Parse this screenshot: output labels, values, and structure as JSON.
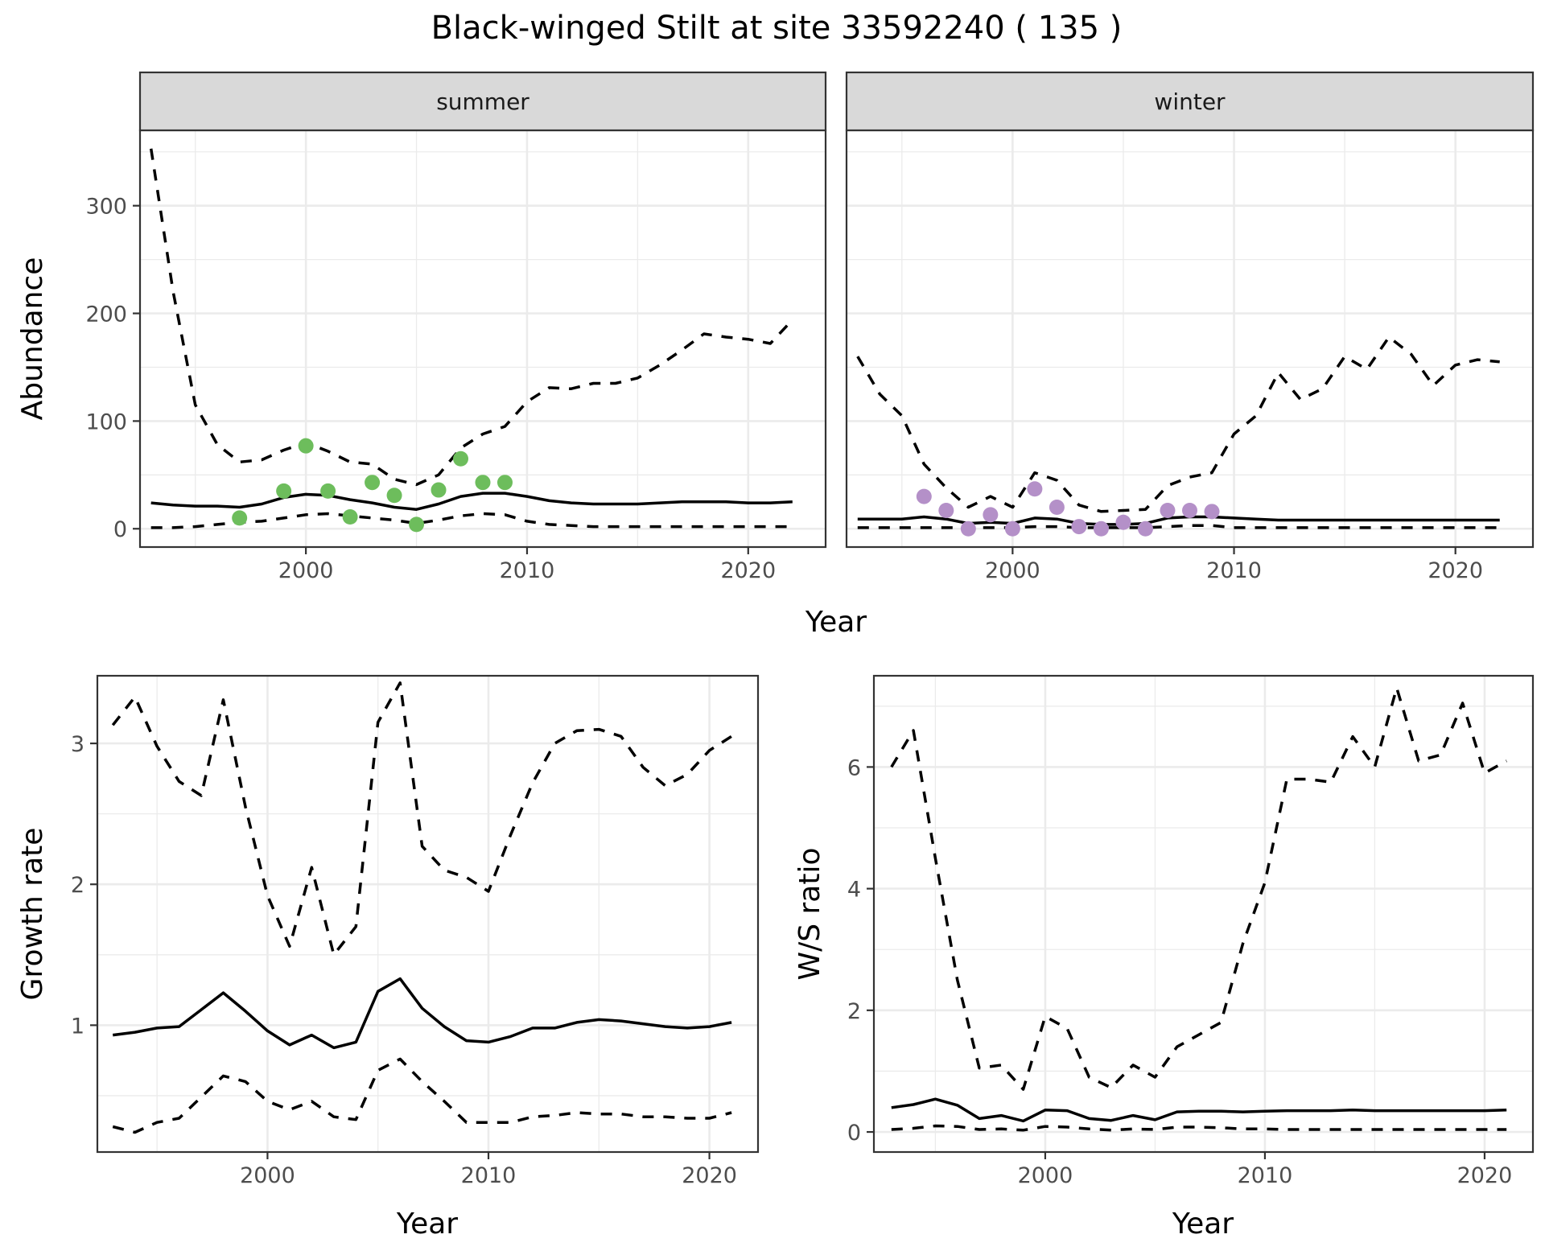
{
  "chart_data": {
    "title": "Black-winged Stilt at site 33592240 ( 135 )",
    "panels": [
      {
        "id": "summer",
        "type": "line",
        "strip": "summer",
        "xlabel": "Year",
        "ylabel": "Abundance",
        "xlim": [
          1992.5,
          2023.5
        ],
        "ylim": [
          -17,
          370
        ],
        "xticks": [
          2000,
          2010,
          2020
        ],
        "xminor": [
          1995,
          2005,
          2015
        ],
        "yticks": [
          0,
          100,
          200,
          300
        ],
        "yminor": [
          50,
          150,
          250,
          350
        ],
        "show_yticks": true,
        "point_color": "#6dbd5c",
        "x": [
          1993,
          1994,
          1995,
          1996,
          1997,
          1998,
          1999,
          2000,
          2001,
          2002,
          2003,
          2004,
          2005,
          2006,
          2007,
          2008,
          2009,
          2010,
          2011,
          2012,
          2013,
          2014,
          2015,
          2016,
          2017,
          2018,
          2019,
          2020,
          2021,
          2022
        ],
        "series": [
          {
            "name": "upper",
            "style": "dashed",
            "values": [
              353,
              220,
              115,
              78,
              62,
              64,
              73,
              80,
              72,
              62,
              60,
              46,
              41,
              50,
              75,
              88,
              95,
              118,
              131,
              130,
              135,
              135,
              140,
              152,
              166,
              181,
              178,
              176,
              172,
              194
            ]
          },
          {
            "name": "mean",
            "style": "solid",
            "values": [
              24,
              22,
              21,
              21,
              20,
              23,
              29,
              32,
              31,
              27,
              24,
              20,
              18,
              23,
              30,
              33,
              33,
              30,
              26,
              24,
              23,
              23,
              23,
              24,
              25,
              25,
              25,
              24,
              24,
              25
            ]
          },
          {
            "name": "lower",
            "style": "dashed",
            "values": [
              1,
              1,
              2,
              4,
              6,
              7,
              10,
              13,
              14,
              12,
              10,
              8,
              5,
              8,
              12,
              14,
              13,
              7,
              4,
              3,
              2,
              2,
              2,
              2,
              2,
              2,
              2,
              2,
              2,
              2
            ]
          }
        ],
        "points": [
          {
            "x": 1997,
            "y": 10
          },
          {
            "x": 1999,
            "y": 35
          },
          {
            "x": 2000,
            "y": 77
          },
          {
            "x": 2001,
            "y": 35
          },
          {
            "x": 2002,
            "y": 11
          },
          {
            "x": 2003,
            "y": 43
          },
          {
            "x": 2004,
            "y": 31
          },
          {
            "x": 2005,
            "y": 4
          },
          {
            "x": 2006,
            "y": 36
          },
          {
            "x": 2007,
            "y": 65
          },
          {
            "x": 2008,
            "y": 43
          },
          {
            "x": 2009,
            "y": 43
          }
        ]
      },
      {
        "id": "winter",
        "type": "line",
        "strip": "winter",
        "xlabel": "Year",
        "ylabel": "",
        "xlim": [
          1992.5,
          2023.5
        ],
        "ylim": [
          -17,
          370
        ],
        "xticks": [
          2000,
          2010,
          2020
        ],
        "xminor": [
          1995,
          2005,
          2015
        ],
        "yticks": [
          0,
          100,
          200,
          300
        ],
        "yminor": [
          50,
          150,
          250,
          350
        ],
        "show_yticks": false,
        "point_color": "#b490c8",
        "x": [
          1993,
          1994,
          1995,
          1996,
          1997,
          1998,
          1999,
          2000,
          2001,
          2002,
          2003,
          2004,
          2005,
          2006,
          2007,
          2008,
          2009,
          2010,
          2011,
          2012,
          2013,
          2014,
          2015,
          2016,
          2017,
          2018,
          2019,
          2020,
          2021,
          2022
        ],
        "series": [
          {
            "name": "upper",
            "style": "dashed",
            "values": [
              160,
              125,
              105,
              60,
              38,
              20,
              30,
              20,
              52,
              45,
              22,
              16,
              17,
              18,
              40,
              48,
              52,
              88,
              105,
              145,
              120,
              130,
              160,
              148,
              178,
              162,
              133,
              152,
              157,
              155
            ]
          },
          {
            "name": "mean",
            "style": "solid",
            "values": [
              9,
              9,
              9,
              11,
              9,
              5,
              6,
              5,
              10,
              9,
              5,
              4,
              4,
              5,
              10,
              11,
              11,
              10,
              9,
              8,
              8,
              8,
              8,
              8,
              8,
              8,
              8,
              8,
              8,
              8
            ]
          },
          {
            "name": "lower",
            "style": "dashed",
            "values": [
              1,
              1,
              1,
              1,
              1,
              1,
              1,
              1,
              2,
              2,
              1,
              1,
              1,
              1,
              2,
              3,
              3,
              1,
              1,
              1,
              1,
              1,
              1,
              1,
              1,
              1,
              1,
              1,
              1,
              1
            ]
          }
        ],
        "points": [
          {
            "x": 1996,
            "y": 30
          },
          {
            "x": 1997,
            "y": 17
          },
          {
            "x": 1998,
            "y": 0
          },
          {
            "x": 1999,
            "y": 13
          },
          {
            "x": 2000,
            "y": 0
          },
          {
            "x": 2001,
            "y": 37
          },
          {
            "x": 2002,
            "y": 20
          },
          {
            "x": 2003,
            "y": 2
          },
          {
            "x": 2004,
            "y": 0
          },
          {
            "x": 2005,
            "y": 6
          },
          {
            "x": 2006,
            "y": 0
          },
          {
            "x": 2007,
            "y": 17
          },
          {
            "x": 2008,
            "y": 17
          },
          {
            "x": 2009,
            "y": 16
          }
        ]
      },
      {
        "id": "growth",
        "type": "line",
        "strip": "",
        "xlabel": "Year",
        "ylabel": "Growth rate",
        "xlim": [
          1992.3,
          2022.2
        ],
        "ylim": [
          0.1,
          3.48
        ],
        "xticks": [
          2000,
          2010,
          2020
        ],
        "xminor": [
          1995,
          2005,
          2015
        ],
        "yticks": [
          1,
          2,
          3
        ],
        "yminor": [
          0.5,
          1.5,
          2.5
        ],
        "show_yticks": true,
        "x": [
          1993,
          1994,
          1995,
          1996,
          1997,
          1998,
          1999,
          2000,
          2001,
          2002,
          2003,
          2004,
          2005,
          2006,
          2007,
          2008,
          2009,
          2010,
          2011,
          2012,
          2013,
          2014,
          2015,
          2016,
          2017,
          2018,
          2019,
          2020,
          2021
        ],
        "series": [
          {
            "name": "upper",
            "style": "dashed",
            "values": [
              3.13,
              3.33,
              2.98,
              2.73,
              2.63,
              3.31,
              2.55,
              1.92,
              1.56,
              2.12,
              1.5,
              1.7,
              3.15,
              3.43,
              2.27,
              2.1,
              2.05,
              1.95,
              2.35,
              2.72,
              3.0,
              3.09,
              3.1,
              3.05,
              2.83,
              2.7,
              2.78,
              2.95,
              3.05
            ]
          },
          {
            "name": "mean",
            "style": "solid",
            "values": [
              0.93,
              0.95,
              0.98,
              0.99,
              1.11,
              1.23,
              1.1,
              0.96,
              0.86,
              0.93,
              0.84,
              0.88,
              1.24,
              1.33,
              1.12,
              0.99,
              0.89,
              0.88,
              0.92,
              0.98,
              0.98,
              1.02,
              1.04,
              1.03,
              1.01,
              0.99,
              0.98,
              0.99,
              1.02
            ]
          },
          {
            "name": "lower",
            "style": "dashed",
            "values": [
              0.28,
              0.24,
              0.31,
              0.34,
              0.49,
              0.64,
              0.6,
              0.46,
              0.4,
              0.46,
              0.35,
              0.33,
              0.68,
              0.76,
              0.6,
              0.46,
              0.31,
              0.31,
              0.31,
              0.35,
              0.36,
              0.38,
              0.37,
              0.37,
              0.35,
              0.35,
              0.34,
              0.34,
              0.38
            ]
          }
        ]
      },
      {
        "id": "ws-ratio",
        "type": "line",
        "strip": "",
        "xlabel": "Year",
        "ylabel": "W/S ratio",
        "xlim": [
          1992.2,
          2022.2
        ],
        "ylim": [
          -0.33,
          7.5
        ],
        "xticks": [
          2000,
          2010,
          2020
        ],
        "xminor": [
          1995,
          2005,
          2015
        ],
        "yticks": [
          0,
          2,
          4,
          6
        ],
        "yminor": [
          1,
          3,
          5,
          7
        ],
        "show_yticks": true,
        "x": [
          1993,
          1994,
          1995,
          1996,
          1997,
          1998,
          1999,
          2000,
          2001,
          2002,
          2003,
          2004,
          2005,
          2006,
          2007,
          2008,
          2009,
          2010,
          2011,
          2012,
          2013,
          2014,
          2015,
          2016,
          2017,
          2018,
          2019,
          2020,
          2021
        ],
        "series": [
          {
            "name": "upper",
            "style": "dashed",
            "values": [
              6.0,
              6.6,
              4.5,
              2.5,
              1.05,
              1.1,
              0.7,
              1.9,
              1.7,
              0.9,
              0.73,
              1.1,
              0.9,
              1.4,
              1.6,
              1.8,
              3.1,
              4.1,
              5.8,
              5.8,
              5.75,
              6.5,
              6.0,
              7.3,
              6.1,
              6.2,
              7.05,
              5.9,
              6.1
            ]
          },
          {
            "name": "mean",
            "style": "solid",
            "values": [
              0.4,
              0.45,
              0.54,
              0.44,
              0.22,
              0.27,
              0.18,
              0.36,
              0.35,
              0.22,
              0.19,
              0.27,
              0.2,
              0.33,
              0.34,
              0.34,
              0.33,
              0.34,
              0.35,
              0.35,
              0.35,
              0.36,
              0.35,
              0.35,
              0.35,
              0.35,
              0.35,
              0.35,
              0.36
            ]
          },
          {
            "name": "lower",
            "style": "dashed",
            "values": [
              0.04,
              0.06,
              0.1,
              0.09,
              0.04,
              0.05,
              0.03,
              0.09,
              0.08,
              0.05,
              0.03,
              0.05,
              0.04,
              0.08,
              0.08,
              0.07,
              0.05,
              0.05,
              0.04,
              0.04,
              0.04,
              0.04,
              0.04,
              0.04,
              0.04,
              0.04,
              0.04,
              0.04,
              0.04
            ]
          }
        ]
      }
    ]
  }
}
